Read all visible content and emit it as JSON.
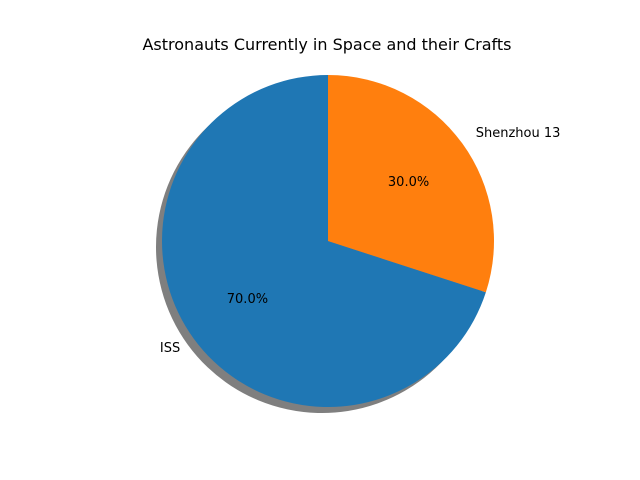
{
  "chart_data": {
    "type": "pie",
    "title": "Astronauts Currently in Space and their Crafts",
    "slices": [
      {
        "label": "ISS",
        "value": 70.0,
        "pct_label": "70.0%",
        "color": "#1f77b4"
      },
      {
        "label": "Shenzhou 13",
        "value": 30.0,
        "pct_label": "30.0%",
        "color": "#ff7f0e"
      }
    ],
    "start_angle_deg": 90,
    "counterclock": true,
    "shadow": true,
    "shadow_color": "#7f7f7f"
  }
}
